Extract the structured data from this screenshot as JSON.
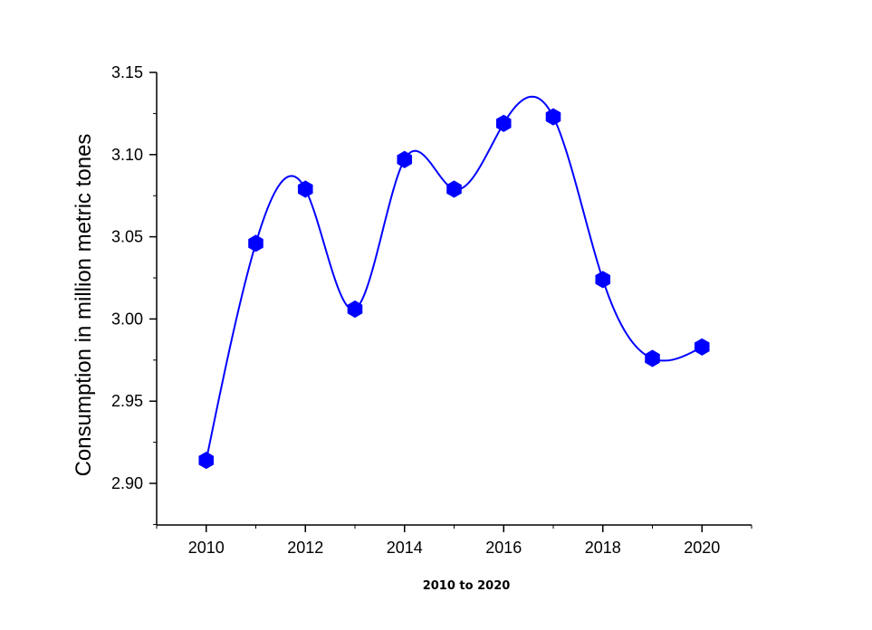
{
  "chart_data": {
    "type": "line",
    "title": "",
    "xlabel": "2010 to 2020",
    "ylabel": "Consumption in million metric tones",
    "x": [
      2010,
      2011,
      2012,
      2013,
      2014,
      2015,
      2016,
      2017,
      2018,
      2019,
      2020
    ],
    "series": [
      {
        "values": [
          2.914,
          3.046,
          3.079,
          3.006,
          3.097,
          3.079,
          3.119,
          3.123,
          3.024,
          2.976,
          2.983
        ],
        "color": "#0000ff",
        "marker": "hexagon",
        "curve": "smooth-spline"
      }
    ],
    "xlim": [
      2009,
      2021
    ],
    "ylim": [
      2.875,
      3.15
    ],
    "xticks": [
      "2010",
      "2012",
      "2014",
      "2016",
      "2018",
      "2020"
    ],
    "yticks": [
      "2.90",
      "2.95",
      "3.00",
      "3.05",
      "3.10",
      "3.15"
    ],
    "grid": false,
    "legend": "none"
  }
}
